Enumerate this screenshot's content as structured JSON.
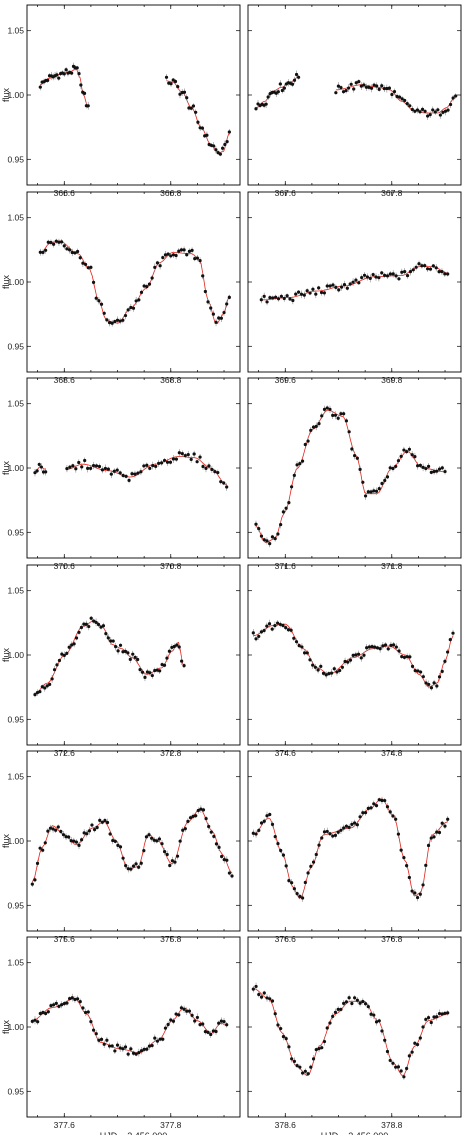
{
  "colors": {
    "points": "#111111",
    "fit": "#e3241b",
    "error_bars": "#888888"
  },
  "chart_data": {
    "type": "scatter",
    "layout": "6x2 grid of light-curve panels",
    "ylabel": "flux",
    "xlabel": "HJD – 2 456 000",
    "ylim": [
      0.93,
      1.07
    ],
    "yticks": [
      "0.95",
      "1.00",
      "1.05"
    ],
    "fit_line": true,
    "panels": [
      {
        "xlim": [
          366.53,
          366.93
        ],
        "xticks": [
          "366.6",
          "366.8"
        ],
        "segments": [
          {
            "x0": 366.555,
            "x1": 366.645,
            "n": 27,
            "pts": [
              [
                0,
                1.008
              ],
              [
                0.18,
                1.013
              ],
              [
                0.4,
                1.016
              ],
              [
                0.6,
                1.018
              ],
              [
                0.75,
                1.02
              ],
              [
                0.82,
                1.014
              ],
              [
                0.9,
                1.0
              ],
              [
                1,
                0.99
              ]
            ]
          },
          {
            "x0": 366.792,
            "x1": 366.91,
            "n": 29,
            "pts": [
              [
                0,
                1.011
              ],
              [
                0.1,
                1.01
              ],
              [
                0.25,
                1.002
              ],
              [
                0.4,
                0.99
              ],
              [
                0.55,
                0.975
              ],
              [
                0.7,
                0.962
              ],
              [
                0.83,
                0.955
              ],
              [
                0.9,
                0.956
              ],
              [
                1,
                0.97
              ]
            ]
          }
        ]
      },
      {
        "xlim": [
          367.53,
          367.93
        ],
        "xticks": [
          "367.6",
          "367.8"
        ],
        "segments": [
          {
            "x0": 367.545,
            "x1": 367.625,
            "n": 22,
            "pts": [
              [
                0,
                0.99
              ],
              [
                0.2,
                0.995
              ],
              [
                0.4,
                1.003
              ],
              [
                0.6,
                1.006
              ],
              [
                0.8,
                1.01
              ],
              [
                1,
                1.014
              ]
            ]
          },
          {
            "x0": 367.695,
            "x1": 367.92,
            "n": 48,
            "pts": [
              [
                0,
                1.004
              ],
              [
                0.22,
                1.008
              ],
              [
                0.35,
                1.006
              ],
              [
                0.45,
                1.004
              ],
              [
                0.55,
                0.995
              ],
              [
                0.65,
                0.988
              ],
              [
                0.75,
                0.986
              ],
              [
                0.85,
                0.986
              ],
              [
                0.92,
                0.99
              ],
              [
                1,
                0.999
              ]
            ]
          }
        ]
      },
      {
        "xlim": [
          368.53,
          368.93
        ],
        "xticks": [
          "368.6",
          "368.8"
        ],
        "segments": [
          {
            "x0": 368.555,
            "x1": 368.91,
            "n": 72,
            "pts": [
              [
                0,
                1.022
              ],
              [
                0.05,
                1.03
              ],
              [
                0.1,
                1.032
              ],
              [
                0.2,
                1.022
              ],
              [
                0.26,
                1.01
              ],
              [
                0.31,
                0.985
              ],
              [
                0.35,
                0.97
              ],
              [
                0.41,
                0.968
              ],
              [
                0.48,
                0.98
              ],
              [
                0.56,
                0.995
              ],
              [
                0.63,
                1.015
              ],
              [
                0.7,
                1.023
              ],
              [
                0.8,
                1.022
              ],
              [
                0.84,
                1.018
              ],
              [
                0.89,
                0.985
              ],
              [
                0.93,
                0.967
              ],
              [
                0.97,
                0.975
              ],
              [
                1,
                0.99
              ]
            ]
          }
        ]
      },
      {
        "xlim": [
          369.53,
          369.93
        ],
        "xticks": [
          "369.6",
          "369.8"
        ],
        "segments": [
          {
            "x0": 369.555,
            "x1": 369.905,
            "n": 66,
            "pts": [
              [
                0,
                0.986
              ],
              [
                0.15,
                0.988
              ],
              [
                0.3,
                0.993
              ],
              [
                0.45,
                0.997
              ],
              [
                0.6,
                1.004
              ],
              [
                0.75,
                1.005
              ],
              [
                0.85,
                1.012
              ],
              [
                0.92,
                1.012
              ],
              [
                1,
                1.007
              ]
            ]
          }
        ]
      },
      {
        "xlim": [
          370.53,
          370.93
        ],
        "xticks": [
          "370.6",
          "370.8"
        ],
        "segments": [
          {
            "x0": 370.545,
            "x1": 370.565,
            "n": 6,
            "pts": [
              [
                0,
                0.997
              ],
              [
                0.5,
                1.001
              ],
              [
                1,
                0.999
              ]
            ]
          },
          {
            "x0": 370.605,
            "x1": 370.905,
            "n": 55,
            "pts": [
              [
                0,
                0.999
              ],
              [
                0.1,
                1.003
              ],
              [
                0.25,
                0.998
              ],
              [
                0.4,
                0.993
              ],
              [
                0.55,
                1.003
              ],
              [
                0.7,
                1.009
              ],
              [
                0.8,
                1.008
              ],
              [
                0.9,
                1.0
              ],
              [
                1,
                0.987
              ]
            ]
          }
        ]
      },
      {
        "xlim": [
          371.53,
          371.93
        ],
        "xticks": [
          "371.6",
          "371.8"
        ],
        "segments": [
          {
            "x0": 371.545,
            "x1": 371.9,
            "n": 70,
            "pts": [
              [
                0,
                0.955
              ],
              [
                0.05,
                0.942
              ],
              [
                0.1,
                0.945
              ],
              [
                0.15,
                0.965
              ],
              [
                0.22,
                1.0
              ],
              [
                0.3,
                1.03
              ],
              [
                0.38,
                1.045
              ],
              [
                0.46,
                1.04
              ],
              [
                0.53,
                1.01
              ],
              [
                0.58,
                0.98
              ],
              [
                0.64,
                0.98
              ],
              [
                0.72,
                1.0
              ],
              [
                0.8,
                1.013
              ],
              [
                0.88,
                1.0
              ],
              [
                1,
                0.997
              ]
            ]
          }
        ]
      },
      {
        "xlim": [
          372.53,
          372.93
        ],
        "xticks": [
          "372.6",
          "372.8"
        ],
        "segments": [
          {
            "x0": 372.545,
            "x1": 372.825,
            "n": 62,
            "pts": [
              [
                0,
                0.97
              ],
              [
                0.08,
                0.978
              ],
              [
                0.2,
                1.0
              ],
              [
                0.32,
                1.022
              ],
              [
                0.4,
                1.027
              ],
              [
                0.45,
                1.022
              ],
              [
                0.52,
                1.008
              ],
              [
                0.58,
                1.005
              ],
              [
                0.65,
                0.998
              ],
              [
                0.75,
                0.985
              ],
              [
                0.85,
                0.99
              ],
              [
                0.92,
                1.003
              ],
              [
                0.96,
                1.01
              ],
              [
                1,
                0.99
              ]
            ]
          }
        ]
      },
      {
        "xlim": [
          374.53,
          374.93
        ],
        "xticks": [
          "374.6",
          "374.8"
        ],
        "segments": [
          {
            "x0": 374.54,
            "x1": 374.915,
            "n": 75,
            "pts": [
              [
                0,
                1.015
              ],
              [
                0.1,
                1.023
              ],
              [
                0.16,
                1.024
              ],
              [
                0.25,
                1.005
              ],
              [
                0.32,
                0.99
              ],
              [
                0.38,
                0.985
              ],
              [
                0.5,
                0.998
              ],
              [
                0.6,
                1.005
              ],
              [
                0.68,
                1.007
              ],
              [
                0.76,
                1.0
              ],
              [
                0.83,
                0.985
              ],
              [
                0.88,
                0.975
              ],
              [
                0.92,
                0.978
              ],
              [
                0.96,
                0.995
              ],
              [
                1,
                1.015
              ]
            ]
          }
        ]
      },
      {
        "xlim": [
          375.53,
          375.93
        ],
        "xticks": [
          "375.6",
          "375.8"
        ],
        "segments": [
          {
            "x0": 375.54,
            "x1": 375.915,
            "n": 78,
            "pts": [
              [
                0,
                0.968
              ],
              [
                0.05,
                0.995
              ],
              [
                0.1,
                1.012
              ],
              [
                0.16,
                1.005
              ],
              [
                0.22,
                0.997
              ],
              [
                0.3,
                1.01
              ],
              [
                0.36,
                1.015
              ],
              [
                0.42,
                1.0
              ],
              [
                0.48,
                0.978
              ],
              [
                0.53,
                0.98
              ],
              [
                0.58,
                1.005
              ],
              [
                0.63,
                1.0
              ],
              [
                0.7,
                0.982
              ],
              [
                0.78,
                1.015
              ],
              [
                0.84,
                1.025
              ],
              [
                0.9,
                1.008
              ],
              [
                0.95,
                0.99
              ],
              [
                1,
                0.975
              ]
            ]
          }
        ]
      },
      {
        "xlim": [
          376.53,
          376.93
        ],
        "xticks": [
          "376.6",
          "376.8"
        ],
        "segments": [
          {
            "x0": 376.54,
            "x1": 376.905,
            "n": 72,
            "pts": [
              [
                0,
                1.005
              ],
              [
                0.08,
                1.018
              ],
              [
                0.15,
                0.99
              ],
              [
                0.2,
                0.965
              ],
              [
                0.24,
                0.955
              ],
              [
                0.3,
                0.98
              ],
              [
                0.36,
                1.005
              ],
              [
                0.5,
                1.01
              ],
              [
                0.6,
                1.025
              ],
              [
                0.66,
                1.033
              ],
              [
                0.72,
                1.02
              ],
              [
                0.78,
                0.985
              ],
              [
                0.83,
                0.957
              ],
              [
                0.86,
                0.96
              ],
              [
                0.92,
                1.005
              ],
              [
                1,
                1.015
              ]
            ]
          }
        ]
      },
      {
        "xlim": [
          377.53,
          377.93
        ],
        "xticks": [
          "377.6",
          "377.8"
        ],
        "segments": [
          {
            "x0": 377.54,
            "x1": 377.905,
            "n": 74,
            "pts": [
              [
                0,
                1.005
              ],
              [
                0.1,
                1.015
              ],
              [
                0.22,
                1.022
              ],
              [
                0.28,
                1.01
              ],
              [
                0.35,
                0.988
              ],
              [
                0.45,
                0.983
              ],
              [
                0.55,
                0.98
              ],
              [
                0.65,
                0.99
              ],
              [
                0.72,
                1.005
              ],
              [
                0.78,
                1.015
              ],
              [
                0.85,
                1.005
              ],
              [
                0.92,
                0.995
              ],
              [
                0.97,
                1.003
              ],
              [
                1,
                1.001
              ]
            ]
          }
        ]
      },
      {
        "xlim": [
          378.53,
          378.93
        ],
        "xticks": [
          "378.6",
          "378.8"
        ],
        "segments": [
          {
            "x0": 378.54,
            "x1": 378.905,
            "n": 72,
            "pts": [
              [
                0,
                1.03
              ],
              [
                0.08,
                1.022
              ],
              [
                0.15,
                0.995
              ],
              [
                0.22,
                0.97
              ],
              [
                0.28,
                0.962
              ],
              [
                0.34,
                0.985
              ],
              [
                0.42,
                1.01
              ],
              [
                0.5,
                1.02
              ],
              [
                0.57,
                1.02
              ],
              [
                0.64,
                1.005
              ],
              [
                0.72,
                0.972
              ],
              [
                0.77,
                0.962
              ],
              [
                0.83,
                0.985
              ],
              [
                0.9,
                1.005
              ],
              [
                1,
                1.01
              ]
            ]
          }
        ]
      }
    ]
  }
}
